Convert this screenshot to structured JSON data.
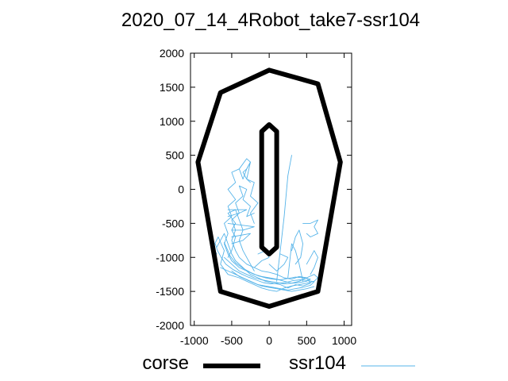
{
  "chart_data": {
    "type": "line",
    "title": "2020_07_14_4Robot_take7-ssr104",
    "xlabel": "",
    "ylabel": "",
    "xlim": [
      -1050,
      1100
    ],
    "ylim": [
      -2000,
      2000
    ],
    "xticks": [
      -1000,
      -500,
      0,
      500,
      1000
    ],
    "yticks": [
      -2000,
      -1500,
      -1000,
      -500,
      0,
      500,
      1000,
      1500,
      2000
    ],
    "xtick_labels": [
      "-1000",
      "-500",
      "0",
      "500",
      "1000"
    ],
    "ytick_labels": [
      "-2000",
      "-1500",
      "-1000",
      "-500",
      "0",
      "500",
      "1000",
      "1500",
      "2000"
    ],
    "legend_position": "bottom",
    "series": [
      {
        "name": "corse",
        "color": "#000000",
        "style": "thick-line",
        "paths": [
          [
            [
              0,
              1750
            ],
            [
              650,
              1550
            ],
            [
              950,
              400
            ],
            [
              650,
              -1500
            ],
            [
              0,
              -1720
            ],
            [
              -650,
              -1500
            ],
            [
              -950,
              400
            ],
            [
              -650,
              1420
            ],
            [
              0,
              1750
            ]
          ],
          [
            [
              -100,
              850
            ],
            [
              0,
              950
            ],
            [
              100,
              850
            ],
            [
              100,
              -850
            ],
            [
              0,
              -950
            ],
            [
              -100,
              -850
            ],
            [
              -100,
              850
            ]
          ]
        ]
      },
      {
        "name": "ssr104",
        "color": "#56b4e9",
        "style": "thin-line",
        "paths": [
          [
            [
              -700,
              -950
            ],
            [
              -750,
              -850
            ],
            [
              -680,
              -700
            ],
            [
              -600,
              -900
            ],
            [
              -650,
              -1100
            ],
            [
              -550,
              -1250
            ],
            [
              -400,
              -1300
            ],
            [
              -300,
              -1350
            ],
            [
              -200,
              -1400
            ],
            [
              -100,
              -1450
            ],
            [
              0,
              -1480
            ],
            [
              100,
              -1500
            ],
            [
              200,
              -1450
            ],
            [
              300,
              -1420
            ],
            [
              400,
              -1400
            ],
            [
              500,
              -1380
            ],
            [
              600,
              -1350
            ],
            [
              650,
              -1300
            ],
            [
              600,
              -1250
            ],
            [
              500,
              -1300
            ],
            [
              400,
              -1350
            ],
            [
              300,
              -1380
            ],
            [
              200,
              -1350
            ],
            [
              100,
              -1320
            ],
            [
              0,
              -1300
            ],
            [
              -100,
              -1280
            ],
            [
              -200,
              -1250
            ],
            [
              -300,
              -1200
            ],
            [
              -400,
              -1150
            ],
            [
              -500,
              -1050
            ],
            [
              -550,
              -950
            ],
            [
              -600,
              -800
            ],
            [
              -550,
              -650
            ],
            [
              -600,
              -500
            ],
            [
              -500,
              -400
            ],
            [
              -550,
              -250
            ],
            [
              -450,
              -150
            ],
            [
              -550,
              0
            ],
            [
              -450,
              100
            ],
            [
              -500,
              250
            ],
            [
              -400,
              300
            ],
            [
              -350,
              150
            ],
            [
              -300,
              300
            ],
            [
              -250,
              400
            ],
            [
              -300,
              150
            ],
            [
              -200,
              100
            ],
            [
              -250,
              -100
            ],
            [
              -150,
              -200
            ],
            [
              -250,
              -350
            ],
            [
              -200,
              -500
            ]
          ],
          [
            [
              -700,
              -850
            ],
            [
              -650,
              -750
            ],
            [
              -600,
              -650
            ],
            [
              -550,
              -800
            ],
            [
              -500,
              -950
            ],
            [
              -450,
              -1050
            ],
            [
              -350,
              -1150
            ],
            [
              -250,
              -1250
            ],
            [
              -150,
              -1300
            ],
            [
              -50,
              -1350
            ],
            [
              50,
              -1380
            ],
            [
              150,
              -1400
            ],
            [
              250,
              -1450
            ],
            [
              350,
              -1400
            ],
            [
              450,
              -1420
            ],
            [
              550,
              -1380
            ],
            [
              500,
              -1300
            ],
            [
              400,
              -1280
            ],
            [
              300,
              -1320
            ],
            [
              200,
              -1300
            ],
            [
              100,
              -1250
            ],
            [
              0,
              -1220
            ],
            [
              -100,
              -1200
            ],
            [
              -200,
              -1150
            ],
            [
              -300,
              -1100
            ],
            [
              -400,
              -1000
            ],
            [
              -450,
              -900
            ],
            [
              -500,
              -750
            ],
            [
              -450,
              -600
            ],
            [
              -500,
              -450
            ],
            [
              -400,
              -350
            ],
            [
              -450,
              -200
            ],
            [
              -350,
              -100
            ],
            [
              -400,
              50
            ],
            [
              -300,
              0
            ],
            [
              -350,
              -150
            ],
            [
              -250,
              -250
            ],
            [
              -300,
              -400
            ],
            [
              -200,
              -350
            ]
          ],
          [
            [
              -650,
              -1150
            ],
            [
              -550,
              -1200
            ],
            [
              -450,
              -1250
            ],
            [
              -350,
              -1300
            ],
            [
              -250,
              -1350
            ],
            [
              -150,
              -1400
            ],
            [
              -50,
              -1420
            ],
            [
              50,
              -1440
            ],
            [
              150,
              -1460
            ],
            [
              250,
              -1480
            ],
            [
              350,
              -1460
            ],
            [
              450,
              -1440
            ],
            [
              550,
              -1410
            ],
            [
              600,
              -1360
            ],
            [
              520,
              -1340
            ],
            [
              420,
              -1330
            ],
            [
              320,
              -1340
            ],
            [
              220,
              -1370
            ],
            [
              120,
              -1380
            ],
            [
              20,
              -1390
            ],
            [
              -80,
              -1370
            ],
            [
              -180,
              -1330
            ],
            [
              -280,
              -1290
            ],
            [
              -380,
              -1240
            ],
            [
              -480,
              -1180
            ],
            [
              -580,
              -1100
            ],
            [
              -640,
              -1000
            ],
            [
              -690,
              -900
            ],
            [
              -720,
              -800
            ]
          ],
          [
            [
              -600,
              -1000
            ],
            [
              -500,
              -1100
            ],
            [
              -400,
              -1200
            ],
            [
              -300,
              -1250
            ],
            [
              -200,
              -1300
            ],
            [
              -100,
              -1330
            ],
            [
              0,
              -1350
            ],
            [
              100,
              -1370
            ],
            [
              200,
              -1390
            ],
            [
              300,
              -1380
            ],
            [
              400,
              -1370
            ],
            [
              500,
              -1350
            ],
            [
              550,
              -1320
            ],
            [
              450,
              -1300
            ],
            [
              350,
              -1290
            ],
            [
              250,
              -1310
            ],
            [
              150,
              -1330
            ],
            [
              50,
              -1320
            ],
            [
              -50,
              -1300
            ],
            [
              -150,
              -1270
            ],
            [
              -250,
              -1220
            ],
            [
              -350,
              -1160
            ],
            [
              -450,
              -1080
            ],
            [
              -520,
              -980
            ],
            [
              -560,
              -880
            ],
            [
              -600,
              -780
            ]
          ],
          [
            [
              -500,
              -1200
            ],
            [
              -400,
              -1280
            ],
            [
              -300,
              -1330
            ],
            [
              -200,
              -1380
            ],
            [
              -100,
              -1420
            ],
            [
              0,
              -1440
            ],
            [
              100,
              -1460
            ],
            [
              200,
              -1480
            ],
            [
              300,
              -1500
            ],
            [
              400,
              -1480
            ],
            [
              500,
              -1460
            ],
            [
              600,
              -1430
            ]
          ],
          [
            [
              -550,
              -1000
            ],
            [
              -500,
              -900
            ],
            [
              -450,
              -700
            ],
            [
              -500,
              -600
            ],
            [
              -450,
              -500
            ],
            [
              -550,
              -350
            ],
            [
              -450,
              -300
            ],
            [
              -400,
              -450
            ],
            [
              -350,
              -600
            ],
            [
              -400,
              -750
            ],
            [
              -350,
              -900
            ],
            [
              -300,
              -1000
            ],
            [
              -250,
              -1100
            ],
            [
              -200,
              -1200
            ]
          ],
          [
            [
              -550,
              -300
            ],
            [
              -300,
              -300
            ],
            [
              -400,
              -350
            ],
            [
              -550,
              -400
            ]
          ],
          [
            [
              -500,
              -700
            ],
            [
              -250,
              -650
            ],
            [
              -350,
              -750
            ],
            [
              -500,
              -800
            ]
          ],
          [
            [
              -550,
              -500
            ],
            [
              -200,
              -550
            ],
            [
              -350,
              -600
            ],
            [
              -500,
              -600
            ]
          ],
          [
            [
              -400,
              300
            ],
            [
              -300,
              450
            ],
            [
              -250,
              400
            ],
            [
              -300,
              300
            ],
            [
              -350,
              250
            ],
            [
              -300,
              150
            ],
            [
              -250,
              100
            ]
          ],
          [
            [
              250,
              -1300
            ],
            [
              300,
              -800
            ],
            [
              350,
              -900
            ],
            [
              400,
              -1100
            ],
            [
              450,
              -1350
            ]
          ],
          [
            [
              300,
              -900
            ],
            [
              350,
              -700
            ],
            [
              400,
              -600
            ],
            [
              450,
              -800
            ],
            [
              420,
              -1000
            ],
            [
              350,
              -1100
            ]
          ],
          [
            [
              450,
              -500
            ],
            [
              550,
              -500
            ],
            [
              650,
              -450
            ],
            [
              600,
              -550
            ],
            [
              650,
              -650
            ],
            [
              550,
              -700
            ],
            [
              500,
              -650
            ]
          ],
          [
            [
              100,
              -1350
            ],
            [
              200,
              -400
            ],
            [
              250,
              200
            ],
            [
              300,
              500
            ]
          ],
          [
            [
              0,
              -1100
            ],
            [
              100,
              -1200
            ],
            [
              200,
              -1100
            ],
            [
              250,
              -1000
            ],
            [
              150,
              -950
            ]
          ],
          [
            [
              -200,
              -1150
            ],
            [
              -100,
              -1050
            ],
            [
              0,
              -1000
            ],
            [
              -50,
              -900
            ],
            [
              -150,
              -950
            ]
          ],
          [
            [
              500,
              -1100
            ],
            [
              550,
              -1000
            ],
            [
              600,
              -900
            ],
            [
              650,
              -1000
            ],
            [
              600,
              -1150
            ],
            [
              550,
              -1250
            ]
          ]
        ]
      }
    ]
  }
}
